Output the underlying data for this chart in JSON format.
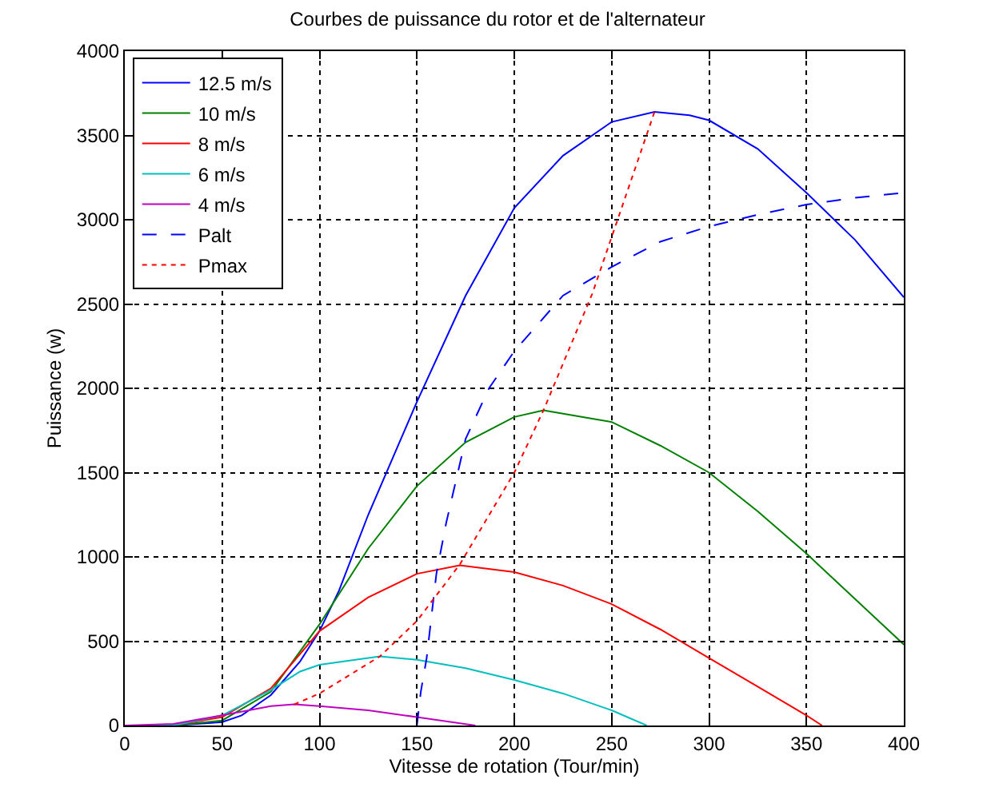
{
  "chart_data": {
    "type": "line",
    "title": "Courbes de puissance du rotor et de l'alternateur",
    "xlabel": "Vitesse de rotation (Tour/min)",
    "ylabel": "Puissance (w)",
    "xlim": [
      0,
      400
    ],
    "ylim": [
      0,
      4000
    ],
    "xticks": [
      0,
      50,
      100,
      150,
      200,
      250,
      300,
      350,
      400
    ],
    "yticks": [
      0,
      500,
      1000,
      1500,
      2000,
      2500,
      3000,
      3500,
      4000
    ],
    "grid": true,
    "legend": "top left",
    "series": [
      {
        "name": "12.5 m/s",
        "color": "#0000ff",
        "line_style": "solid",
        "x": [
          0,
          25,
          50,
          60,
          75,
          90,
          100,
          110,
          125,
          150,
          175,
          200,
          225,
          250,
          272,
          290,
          300,
          325,
          350,
          375,
          400
        ],
        "values": [
          0,
          0,
          20,
          60,
          180,
          380,
          560,
          800,
          1250,
          1920,
          2550,
          3070,
          3380,
          3580,
          3640,
          3620,
          3590,
          3420,
          3160,
          2880,
          2540
        ]
      },
      {
        "name": "10 m/s",
        "color": "#008000",
        "line_style": "solid",
        "x": [
          0,
          25,
          50,
          75,
          100,
          125,
          150,
          175,
          200,
          215,
          240,
          250,
          275,
          300,
          325,
          350,
          375,
          400
        ],
        "values": [
          0,
          0,
          30,
          200,
          600,
          1050,
          1420,
          1680,
          1830,
          1870,
          1820,
          1800,
          1660,
          1500,
          1270,
          1020,
          750,
          480
        ]
      },
      {
        "name": "8 m/s",
        "color": "#ff0000",
        "line_style": "solid",
        "x": [
          0,
          25,
          50,
          75,
          100,
          125,
          150,
          172,
          200,
          225,
          250,
          275,
          300,
          325,
          350,
          358
        ],
        "values": [
          0,
          0,
          50,
          220,
          560,
          760,
          900,
          950,
          910,
          830,
          720,
          570,
          400,
          230,
          60,
          0
        ]
      },
      {
        "name": "6 m/s",
        "color": "#00bfbf",
        "line_style": "solid",
        "x": [
          0,
          25,
          50,
          75,
          90,
          100,
          125,
          131,
          150,
          175,
          200,
          225,
          250,
          268
        ],
        "values": [
          0,
          0,
          60,
          210,
          320,
          360,
          400,
          410,
          390,
          340,
          270,
          190,
          90,
          0
        ]
      },
      {
        "name": "4 m/s",
        "color": "#bf00bf",
        "line_style": "solid",
        "x": [
          0,
          25,
          50,
          75,
          87,
          100,
          125,
          150,
          165,
          180
        ],
        "values": [
          0,
          10,
          60,
          115,
          125,
          115,
          90,
          50,
          25,
          0
        ]
      },
      {
        "name": "Palt",
        "color": "#0000ff",
        "line_style": "dashed",
        "x": [
          150,
          152,
          155,
          160,
          165,
          175,
          187,
          200,
          225,
          250,
          275,
          300,
          325,
          350,
          375,
          400
        ],
        "values": [
          0,
          200,
          400,
          900,
          1200,
          1700,
          2000,
          2220,
          2550,
          2720,
          2870,
          2960,
          3030,
          3090,
          3130,
          3160
        ]
      },
      {
        "name": "Pmax",
        "color": "#ff0000",
        "line_style": "dotted",
        "x": [
          87,
          100,
          131,
          150,
          172,
          200,
          215,
          240,
          272
        ],
        "values": [
          125,
          190,
          410,
          620,
          955,
          1500,
          1870,
          2560,
          3640
        ]
      }
    ]
  }
}
